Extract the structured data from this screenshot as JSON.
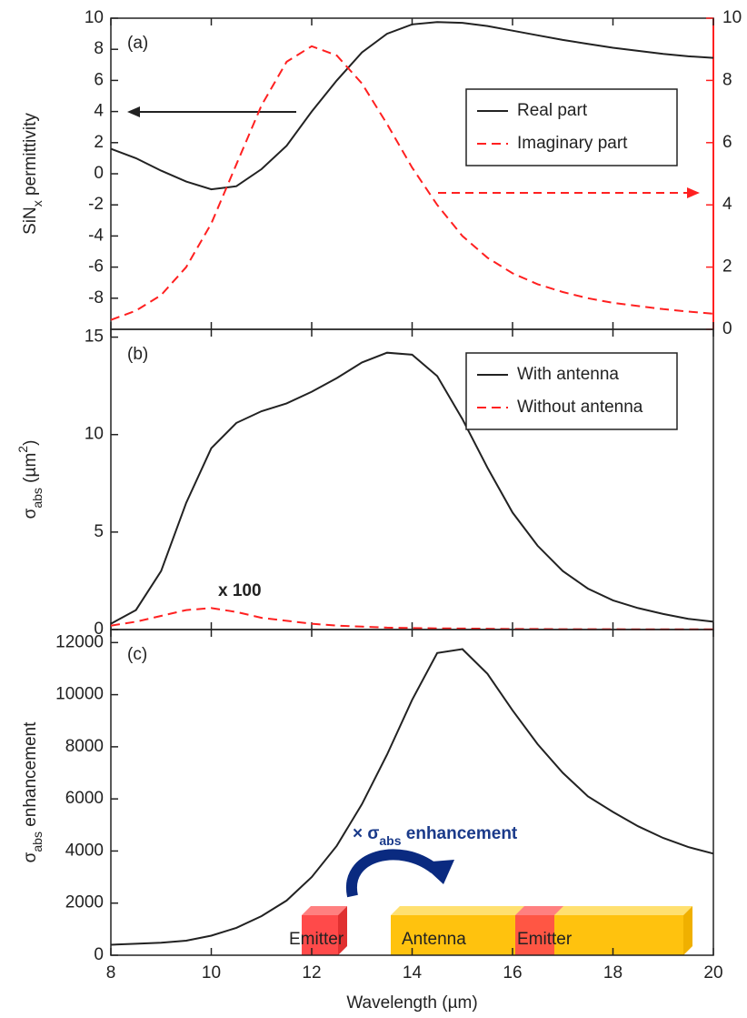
{
  "chart_data": [
    {
      "type": "line",
      "panel_label": "(a)",
      "ylabel": [
        {
          "text": "SiN"
        },
        {
          "text": "x",
          "sub": true
        },
        {
          "text": " permittivity"
        }
      ],
      "x": [
        8,
        8.5,
        9,
        9.5,
        10,
        10.5,
        11,
        11.5,
        12,
        12.5,
        13,
        13.5,
        14,
        14.5,
        15,
        15.5,
        16,
        16.5,
        17,
        17.5,
        18,
        18.5,
        19,
        19.5,
        20
      ],
      "xlim": [
        8,
        20
      ],
      "ylim": [
        -10,
        10
      ],
      "yticks": [
        -8,
        -6,
        -4,
        -2,
        0,
        2,
        4,
        6,
        8,
        10
      ],
      "y2lim": [
        0,
        10
      ],
      "y2ticks": [
        0,
        2,
        4,
        6,
        8,
        10
      ],
      "y2color": "#ff2020",
      "legend": "upper right",
      "series": [
        {
          "name": "Real part",
          "color": "#222222",
          "dash": false,
          "values": [
            1.6,
            1.0,
            0.2,
            -0.5,
            -1.0,
            -0.8,
            0.3,
            1.8,
            4.0,
            6.0,
            7.8,
            9.0,
            9.6,
            9.75,
            9.7,
            9.5,
            9.2,
            8.9,
            8.6,
            8.35,
            8.1,
            7.9,
            7.7,
            7.55,
            7.45
          ]
        },
        {
          "name": "Imaginary part",
          "color": "#ff2020",
          "dash": true,
          "axis": "y2",
          "values": [
            0.3,
            0.6,
            1.1,
            2.0,
            3.4,
            5.3,
            7.2,
            8.6,
            9.1,
            8.8,
            7.9,
            6.6,
            5.2,
            4.0,
            3.0,
            2.3,
            1.8,
            1.45,
            1.2,
            1.0,
            0.85,
            0.75,
            0.65,
            0.57,
            0.5
          ]
        }
      ]
    },
    {
      "type": "line",
      "panel_label": "(b)",
      "ylabel": [
        {
          "text": "σ"
        },
        {
          "text": "abs",
          "sub": true
        },
        {
          "text": " (µm"
        },
        {
          "text": "2",
          "sup": true
        },
        {
          "text": ")"
        }
      ],
      "x": [
        8,
        8.5,
        9,
        9.5,
        10,
        10.5,
        11,
        11.5,
        12,
        12.5,
        13,
        13.5,
        14,
        14.5,
        15,
        15.5,
        16,
        16.5,
        17,
        17.5,
        18,
        18.5,
        19,
        19.5,
        20
      ],
      "xlim": [
        8,
        20
      ],
      "ylim": [
        0,
        15.4
      ],
      "yticks": [
        0,
        5,
        10,
        15
      ],
      "legend": "upper right",
      "annotation": "x 100",
      "series": [
        {
          "name": "With antenna",
          "color": "#222222",
          "dash": false,
          "values": [
            0.3,
            1.0,
            3.0,
            6.5,
            9.3,
            10.6,
            11.2,
            11.6,
            12.2,
            12.9,
            13.7,
            14.2,
            14.1,
            13.0,
            10.8,
            8.3,
            6.0,
            4.3,
            3.0,
            2.1,
            1.5,
            1.1,
            0.8,
            0.55,
            0.4
          ]
        },
        {
          "name": "Without antenna",
          "color": "#ff2020",
          "dash": true,
          "values": [
            0.2,
            0.4,
            0.7,
            1.0,
            1.1,
            0.9,
            0.6,
            0.45,
            0.3,
            0.2,
            0.15,
            0.1,
            0.08,
            0.06,
            0.05,
            0.04,
            0.03,
            0.03,
            0.02,
            0.02,
            0.02,
            0.01,
            0.01,
            0.01,
            0.01
          ]
        }
      ]
    },
    {
      "type": "line",
      "panel_label": "(c)",
      "ylabel": [
        {
          "text": "σ"
        },
        {
          "text": "abs",
          "sub": true
        },
        {
          "text": " enhancement"
        }
      ],
      "xlabel": "Wavelength (µm)",
      "x": [
        8,
        8.5,
        9,
        9.5,
        10,
        10.5,
        11,
        11.5,
        12,
        12.5,
        13,
        13.5,
        14,
        14.5,
        15,
        15.5,
        16,
        16.5,
        17,
        17.5,
        18,
        18.5,
        19,
        19.5,
        20
      ],
      "xlim": [
        8,
        20
      ],
      "xticks": [
        8,
        10,
        12,
        14,
        16,
        18,
        20
      ],
      "ylim": [
        0,
        12500
      ],
      "yticks": [
        0,
        2000,
        4000,
        6000,
        8000,
        10000,
        12000
      ],
      "inset_label": [
        {
          "text": "× σ"
        },
        {
          "text": "abs",
          "sub": true
        },
        {
          "text": " enhancement"
        }
      ],
      "inset_texts": [
        "Emitter",
        "Antenna",
        "Emitter"
      ],
      "series": [
        {
          "name": "Enhancement",
          "color": "#222222",
          "dash": false,
          "values": [
            400,
            440,
            480,
            560,
            750,
            1050,
            1500,
            2100,
            3000,
            4200,
            5800,
            7700,
            9800,
            11600,
            11750,
            10800,
            9400,
            8100,
            7000,
            6100,
            5500,
            4950,
            4500,
            4150,
            3900
          ]
        }
      ]
    }
  ]
}
